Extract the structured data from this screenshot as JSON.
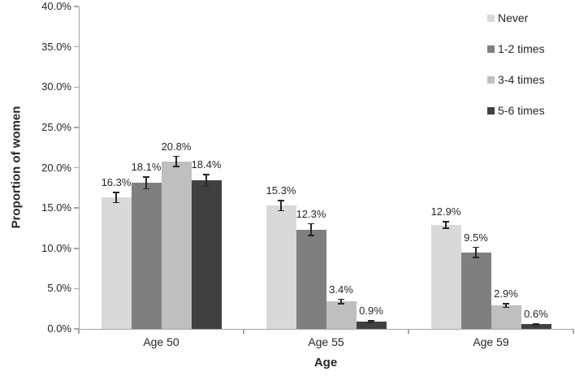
{
  "colors": {
    "axis": "#a6a6a6",
    "text": "#262626",
    "error_bar": "#262626",
    "background": "#ffffff"
  },
  "chart_data": {
    "type": "bar",
    "title": "",
    "xlabel": "Age",
    "ylabel": "Proportion of women",
    "ylim": [
      0,
      40
    ],
    "ytick_labels": [
      "0.0%",
      "5.0%",
      "10.0%",
      "15.0%",
      "20.0%",
      "25.0%",
      "30.0%",
      "35.0%",
      "40.0%"
    ],
    "grid": false,
    "error_bars": true,
    "legend_position": "top-right",
    "categories": [
      "Age 50",
      "Age 55",
      "Age 59"
    ],
    "series": [
      {
        "name": "Never",
        "color": "#d9d9d9",
        "values": [
          16.3,
          15.3,
          12.9
        ],
        "labels": [
          "16.3%",
          "15.3%",
          "12.9%"
        ],
        "errors": [
          0.7,
          0.7,
          0.5
        ]
      },
      {
        "name": "1-2 times",
        "color": "#7f7f7f",
        "values": [
          18.1,
          12.3,
          9.5
        ],
        "labels": [
          "18.1%",
          "12.3%",
          "9.5%"
        ],
        "errors": [
          0.8,
          0.8,
          0.7
        ]
      },
      {
        "name": "3-4 times",
        "color": "#bfbfbf",
        "values": [
          20.8,
          3.4,
          2.9
        ],
        "labels": [
          "20.8%",
          "3.4%",
          "2.9%"
        ],
        "errors": [
          0.7,
          0.35,
          0.3
        ]
      },
      {
        "name": "5-6 times",
        "color": "#404040",
        "values": [
          18.4,
          0.9,
          0.6
        ],
        "labels": [
          "18.4%",
          "0.9%",
          "0.6%"
        ],
        "errors": [
          0.8,
          0.2,
          0.15
        ]
      }
    ]
  }
}
